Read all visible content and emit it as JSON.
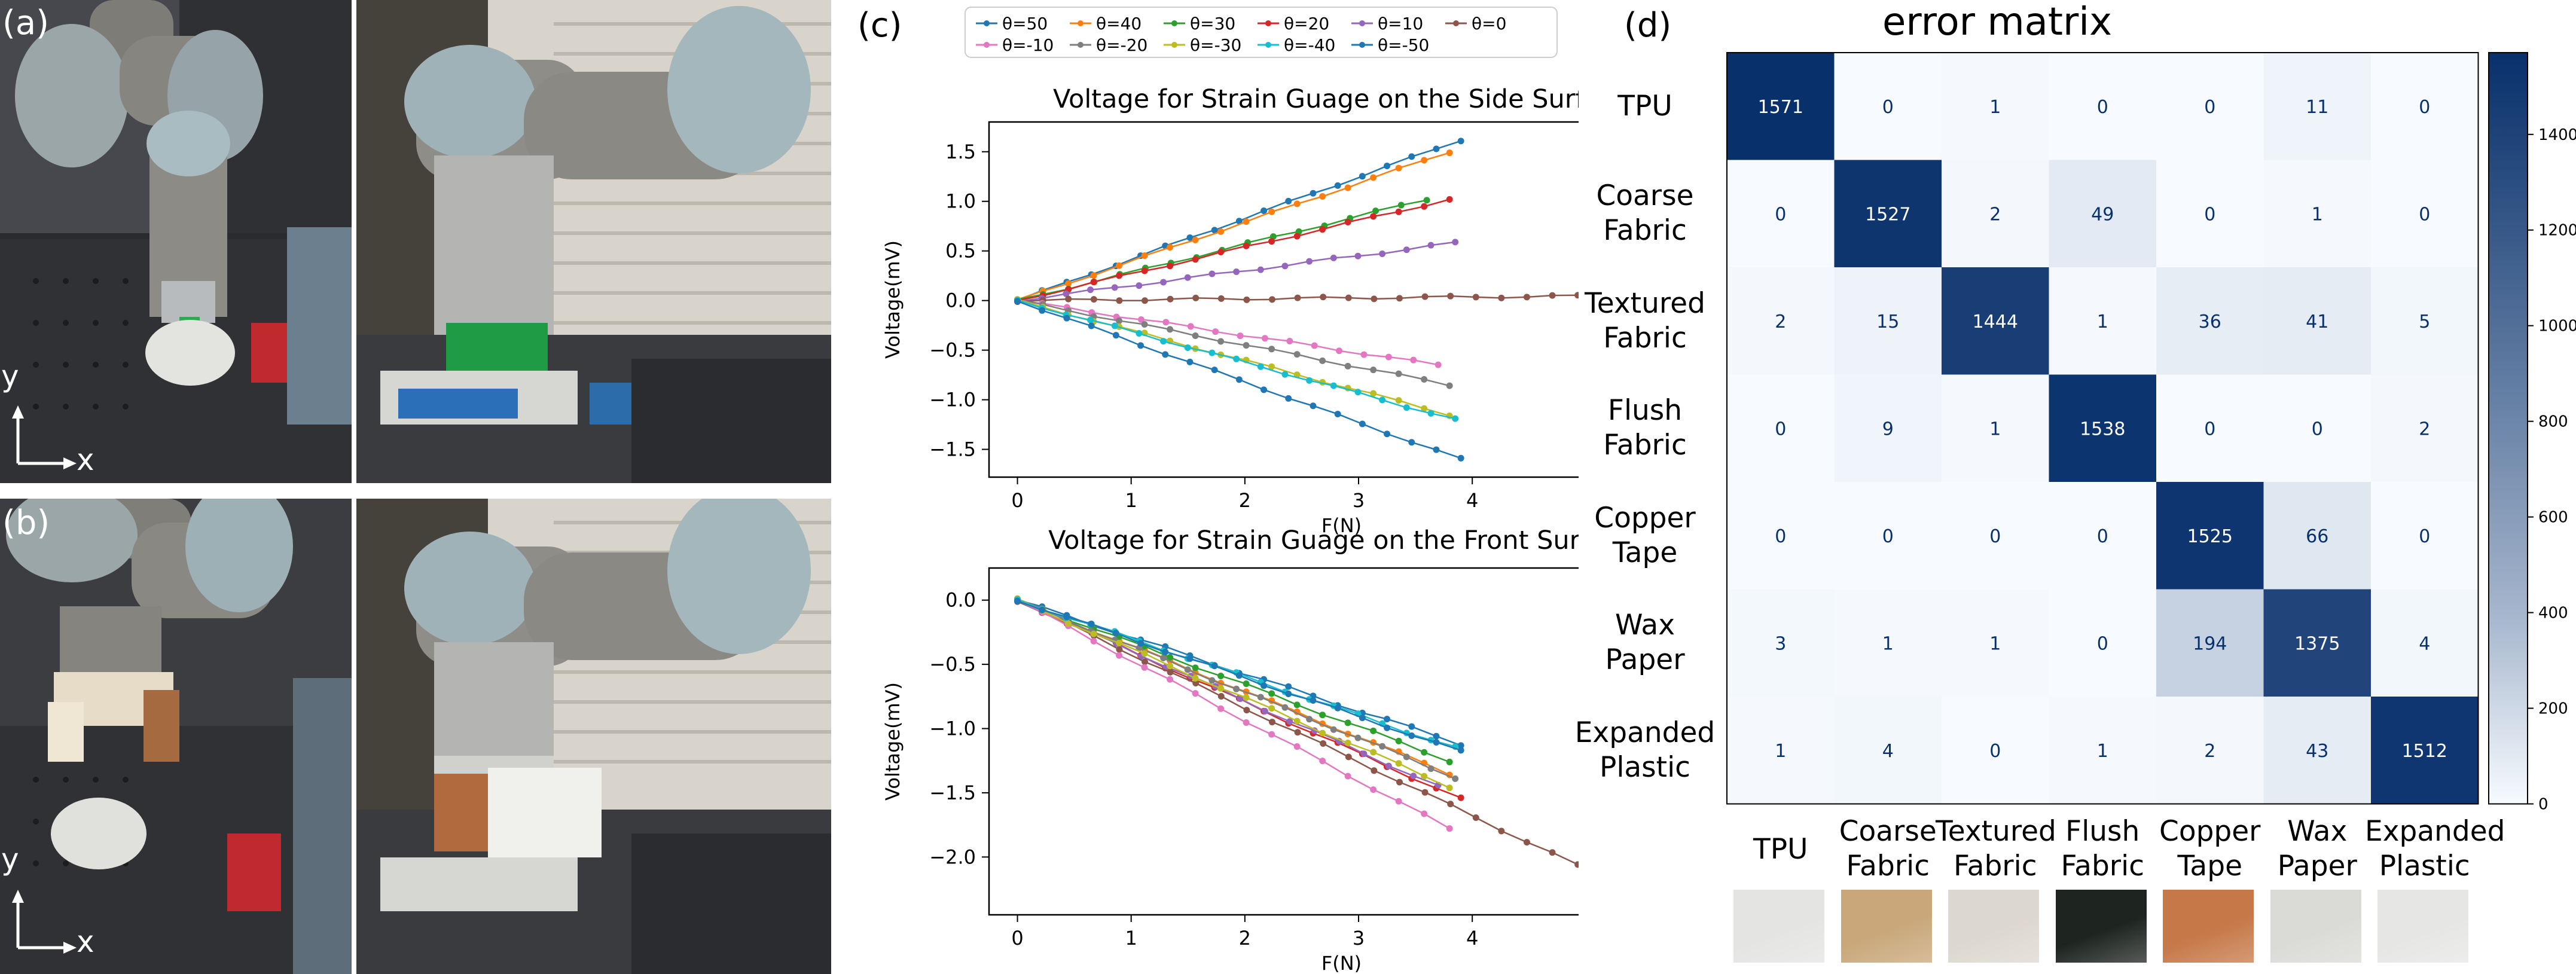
{
  "panels": {
    "a": "(a)",
    "b": "(b)",
    "c": "(c)",
    "d": "(d)"
  },
  "photo_axes": {
    "y": "y",
    "x": "x"
  },
  "colors": {
    "theta=50": "#1f77b4",
    "theta=40": "#ff7f0e",
    "theta=30": "#2ca02c",
    "theta=20": "#d62728",
    "theta=10": "#9467bd",
    "theta=0": "#8c564b",
    "theta=-10": "#e377c2",
    "theta=-20": "#7f7f7f",
    "theta=-30": "#bcbd22",
    "theta=-40": "#17becf",
    "theta=-50": "#1f77b4"
  },
  "chart_data": [
    {
      "type": "line",
      "title": "Voltage for Strain Guage on the Side Surface",
      "xlabel": "F(N)",
      "ylabel": "Voltage(mV)",
      "xlim": [
        -0.25,
        5.95
      ],
      "ylim": [
        -1.78,
        1.8
      ],
      "xticks": [
        0,
        1,
        2,
        3,
        4,
        5
      ],
      "yticks": [
        -1.5,
        -1.0,
        -0.5,
        0.0,
        0.5,
        1.0,
        1.5
      ],
      "ytick_labels": [
        "−1.5",
        "−1.0",
        "−0.5",
        "0.0",
        "0.5",
        "1.0",
        "1.5"
      ],
      "legend": [
        "θ=50",
        "θ=40",
        "θ=30",
        "θ=20",
        "θ=10",
        "θ=0",
        "θ=-10",
        "θ=-20",
        "θ=-30",
        "θ=-40",
        "θ=-50"
      ],
      "legend_position": "top",
      "series": [
        {
          "name": "θ=50",
          "color": "#1f77b4",
          "x_end": 3.9,
          "y_end": 1.62
        },
        {
          "name": "θ=40",
          "color": "#ff7f0e",
          "x_end": 3.8,
          "y_end": 1.5
        },
        {
          "name": "θ=30",
          "color": "#2ca02c",
          "x_end": 3.6,
          "y_end": 1.02
        },
        {
          "name": "θ=20",
          "color": "#d62728",
          "x_end": 3.8,
          "y_end": 1.02
        },
        {
          "name": "θ=10",
          "color": "#9467bd",
          "x_end": 3.85,
          "y_end": 0.58
        },
        {
          "name": "θ=0",
          "color": "#8c564b",
          "x_end": 5.6,
          "y_end": 0.05
        },
        {
          "name": "θ=-10",
          "color": "#e377c2",
          "x_end": 3.7,
          "y_end": -0.65
        },
        {
          "name": "θ=-20",
          "color": "#7f7f7f",
          "x_end": 3.8,
          "y_end": -0.85
        },
        {
          "name": "θ=-30",
          "color": "#bcbd22",
          "x_end": 3.8,
          "y_end": -1.15
        },
        {
          "name": "θ=-40",
          "color": "#17becf",
          "x_end": 3.85,
          "y_end": -1.2
        },
        {
          "name": "θ=-50",
          "color": "#1f77b4",
          "x_end": 3.9,
          "y_end": -1.6
        }
      ]
    },
    {
      "type": "line",
      "title": "Voltage for Strain Guage on the Front Surface",
      "xlabel": "F(N)",
      "ylabel": "Voltage(mV)",
      "xlim": [
        -0.25,
        5.95
      ],
      "ylim": [
        -2.45,
        0.25
      ],
      "xticks": [
        0,
        1,
        2,
        3,
        4,
        5
      ],
      "yticks": [
        -2.0,
        -1.5,
        -1.0,
        -0.5,
        0.0
      ],
      "ytick_labels": [
        "−2.0",
        "−1.5",
        "−1.0",
        "−0.5",
        "0.0"
      ],
      "series": [
        {
          "name": "θ=50",
          "color": "#1f77b4",
          "x_end": 3.9,
          "y_end": -1.12
        },
        {
          "name": "θ=40",
          "color": "#ff7f0e",
          "x_end": 3.8,
          "y_end": -1.35
        },
        {
          "name": "θ=30",
          "color": "#2ca02c",
          "x_end": 3.8,
          "y_end": -1.25
        },
        {
          "name": "θ=20",
          "color": "#d62728",
          "x_end": 3.9,
          "y_end": -1.55
        },
        {
          "name": "θ=10",
          "color": "#9467bd",
          "x_end": 3.7,
          "y_end": -1.45
        },
        {
          "name": "θ=0",
          "color": "#8c564b",
          "x_end": 5.6,
          "y_end": -2.35
        },
        {
          "name": "θ=-10",
          "color": "#e377c2",
          "x_end": 3.8,
          "y_end": -1.78
        },
        {
          "name": "θ=-20",
          "color": "#7f7f7f",
          "x_end": 3.85,
          "y_end": -1.38
        },
        {
          "name": "θ=-30",
          "color": "#bcbd22",
          "x_end": 3.8,
          "y_end": -1.45
        },
        {
          "name": "θ=-40",
          "color": "#17becf",
          "x_end": 3.85,
          "y_end": -1.15
        },
        {
          "name": "θ=-50",
          "color": "#1f77b4",
          "x_end": 3.9,
          "y_end": -1.18
        }
      ]
    },
    {
      "type": "heatmap",
      "title": "error matrix",
      "row_labels": [
        "TPU",
        "Coarse\nFabric",
        "Textured\nFabric",
        "Flush\nFabric",
        "Copper\nTape",
        "Wax\nPaper",
        "Expanded\nPlastic"
      ],
      "col_labels": [
        "TPU",
        "Coarse\nFabric",
        "Textured\nFabric",
        "Flush\nFabric",
        "Copper\nTape",
        "Wax\nPaper",
        "Expanded\nPlastic"
      ],
      "values": [
        [
          1571,
          0,
          1,
          0,
          0,
          11,
          0
        ],
        [
          0,
          1527,
          2,
          49,
          0,
          1,
          0
        ],
        [
          2,
          15,
          1444,
          1,
          36,
          41,
          5
        ],
        [
          0,
          9,
          1,
          1538,
          0,
          0,
          2
        ],
        [
          0,
          0,
          0,
          0,
          1525,
          66,
          0
        ],
        [
          3,
          1,
          1,
          0,
          194,
          1375,
          4
        ],
        [
          1,
          4,
          0,
          1,
          2,
          43,
          1512
        ]
      ],
      "colorbar_range": [
        0,
        1571
      ],
      "colorbar_ticks": [
        0,
        200,
        400,
        600,
        800,
        1000,
        1200,
        1400
      ],
      "swatch_colors": [
        "#e4e4e2",
        "#c9a77a",
        "#ddd8cf",
        "#1e2420",
        "#c67848",
        "#dadad6",
        "#e6e6e4"
      ]
    }
  ]
}
